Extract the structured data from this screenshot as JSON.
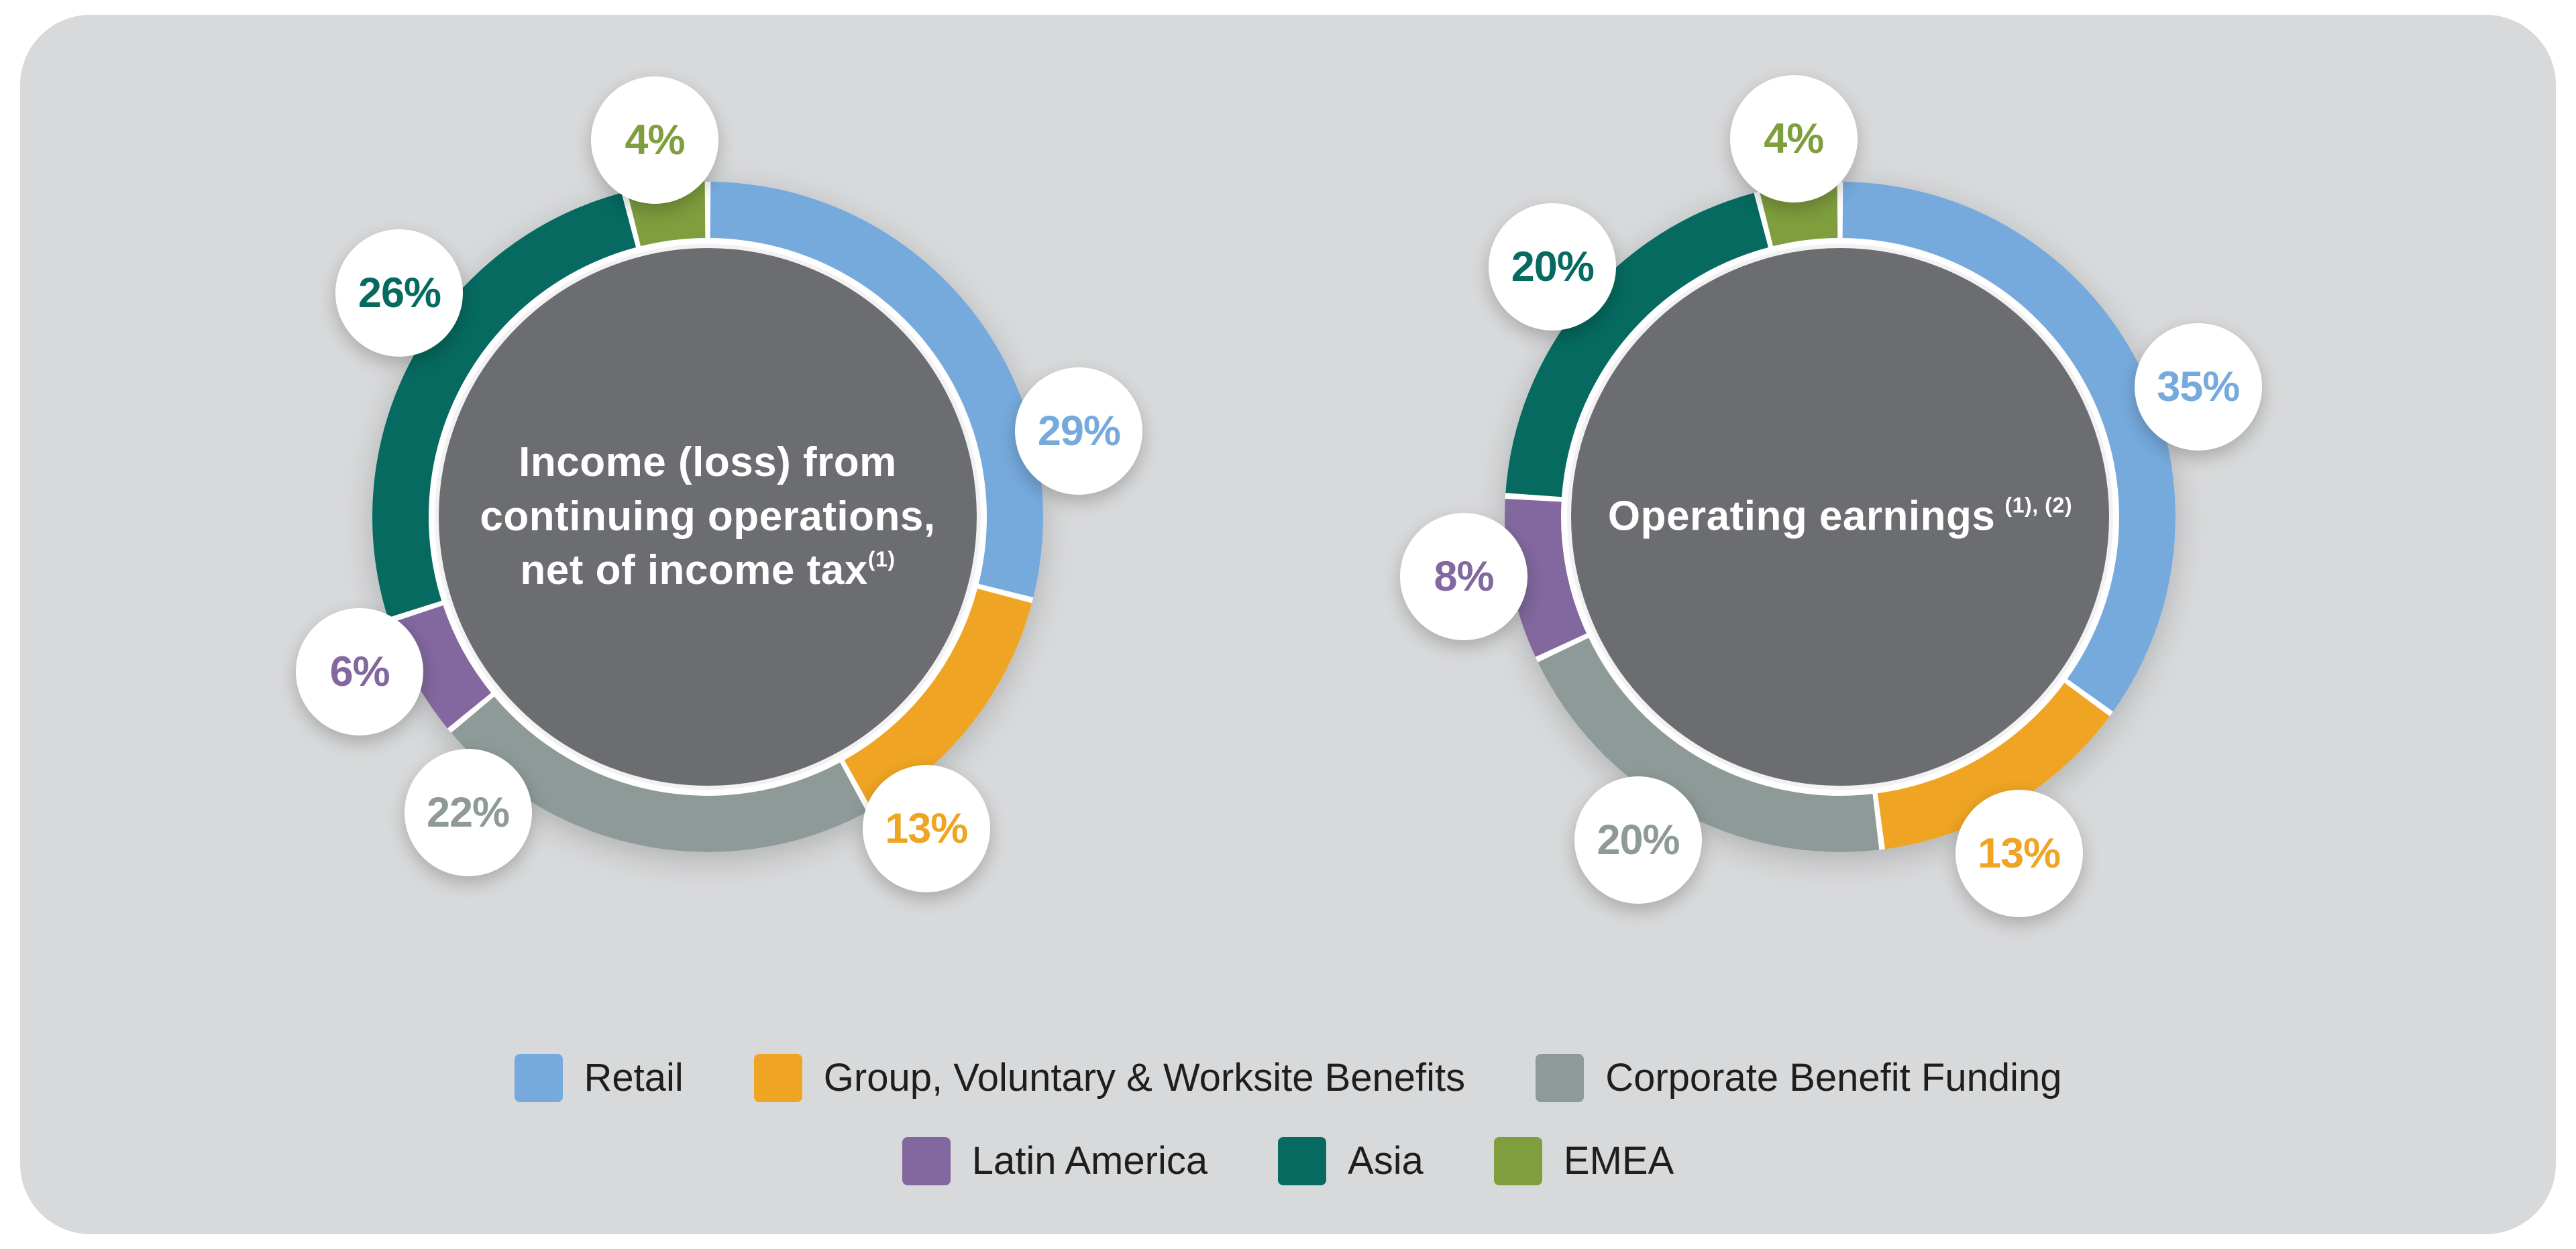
{
  "page": {
    "background": "#ffffff",
    "panel_background": "#d8d9da"
  },
  "chart_data": [
    {
      "type": "donut",
      "title": "Income (loss) from continuing operations, net of income tax",
      "title_lines": [
        "Income (loss) from",
        "continuing operations,",
        "net of income tax"
      ],
      "title_footnote": "(1)",
      "unit": "%",
      "categories": [
        "Retail",
        "Group, Voluntary & Worksite Benefits",
        "Corporate Benefit Funding",
        "Latin America",
        "Asia",
        "EMEA"
      ],
      "values": [
        29,
        13,
        22,
        6,
        26,
        4
      ],
      "labels": [
        "29%",
        "13%",
        "22%",
        "6%",
        "26%",
        "4%"
      ],
      "colors": [
        "#76aadd",
        "#efa423",
        "#8e9a98",
        "#82689e",
        "#066a60",
        "#7f9e3e"
      ],
      "label_angles_deg": [
        77,
        145,
        219,
        246,
        306,
        352
      ],
      "start_angle_deg": 0,
      "direction": "clockwise",
      "center_color": "#6b6d70",
      "label_circle_color": "#ffffff"
    },
    {
      "type": "donut",
      "title": "Operating earnings",
      "title_lines": [
        "Operating earnings"
      ],
      "title_footnote": "(1), (2)",
      "unit": "%",
      "categories": [
        "Retail",
        "Group, Voluntary & Worksite Benefits",
        "Corporate Benefit Funding",
        "Latin America",
        "Asia",
        "EMEA"
      ],
      "values": [
        35,
        13,
        20,
        8,
        20,
        4
      ],
      "labels": [
        "35%",
        "13%",
        "20%",
        "8%",
        "20%",
        "4%"
      ],
      "colors": [
        "#76aadd",
        "#efa423",
        "#8e9a98",
        "#82689e",
        "#066a60",
        "#7f9e3e"
      ],
      "label_angles_deg": [
        70,
        152,
        212,
        261,
        311,
        353
      ],
      "start_angle_deg": 0,
      "direction": "clockwise",
      "center_color": "#6b6d70",
      "label_circle_color": "#ffffff"
    }
  ],
  "legend": {
    "rows": [
      [
        {
          "label": "Retail",
          "color": "#76aadd"
        },
        {
          "label": "Group, Voluntary & Worksite Benefits",
          "color": "#efa423"
        },
        {
          "label": "Corporate Benefit Funding",
          "color": "#8e9a98"
        }
      ],
      [
        {
          "label": "Latin America",
          "color": "#82689e"
        },
        {
          "label": "Asia",
          "color": "#066a60"
        },
        {
          "label": "EMEA",
          "color": "#7f9e3e"
        }
      ]
    ]
  }
}
